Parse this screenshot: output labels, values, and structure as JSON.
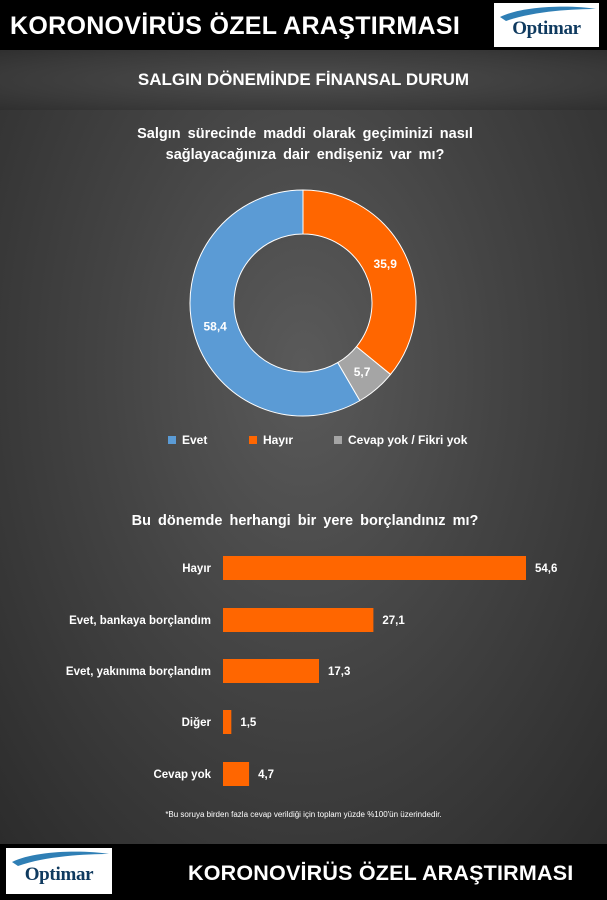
{
  "header": {
    "title": "KORONOVİRÜS ÖZEL ARAŞTIRMASI",
    "logo_text": "Optimar"
  },
  "subtitle": "SALGIN DÖNEMİNDE FİNANSAL DURUM",
  "footer": {
    "title": "KORONOVİRÜS ÖZEL ARAŞTIRMASI",
    "logo_text": "Optimar"
  },
  "footnote": "*Bu soruya birden fazla cevap verildiği için toplam yüzde %100'ün üzerindedir.",
  "colors": {
    "blue": "#5b9bd5",
    "orange": "#ff6600",
    "gray": "#a5a5a5"
  },
  "chart_data": [
    {
      "type": "pie",
      "title": "Salgın sürecinde maddi olarak geçiminizi nasıl sağlayacağınıza dair endişeniz var mı?",
      "title_lines": [
        "Salgın sürecinde maddi olarak geçiminizi nasıl",
        "sağlayacağınıza dair endişeniz var mı?"
      ],
      "categories": [
        "Evet",
        "Hayır",
        "Cevap yok / Fikri yok"
      ],
      "values": [
        58.4,
        35.9,
        5.7
      ],
      "value_labels": [
        "58,4",
        "35,9",
        "5,7"
      ],
      "colors": [
        "#5b9bd5",
        "#ff6600",
        "#a5a5a5"
      ],
      "legend": "bottom"
    },
    {
      "type": "bar",
      "orientation": "horizontal",
      "title": "Bu dönemde herhangi bir yere borçlandınız mı?",
      "categories": [
        "Hayır",
        "Evet, bankaya borçlandım",
        "Evet, yakınıma borçlandım",
        "Diğer",
        "Cevap yok"
      ],
      "values": [
        54.6,
        27.1,
        17.3,
        1.5,
        4.7
      ],
      "value_labels": [
        "54,6",
        "27,1",
        "17,3",
        "1,5",
        "4,7"
      ],
      "color": "#ff6600"
    }
  ]
}
